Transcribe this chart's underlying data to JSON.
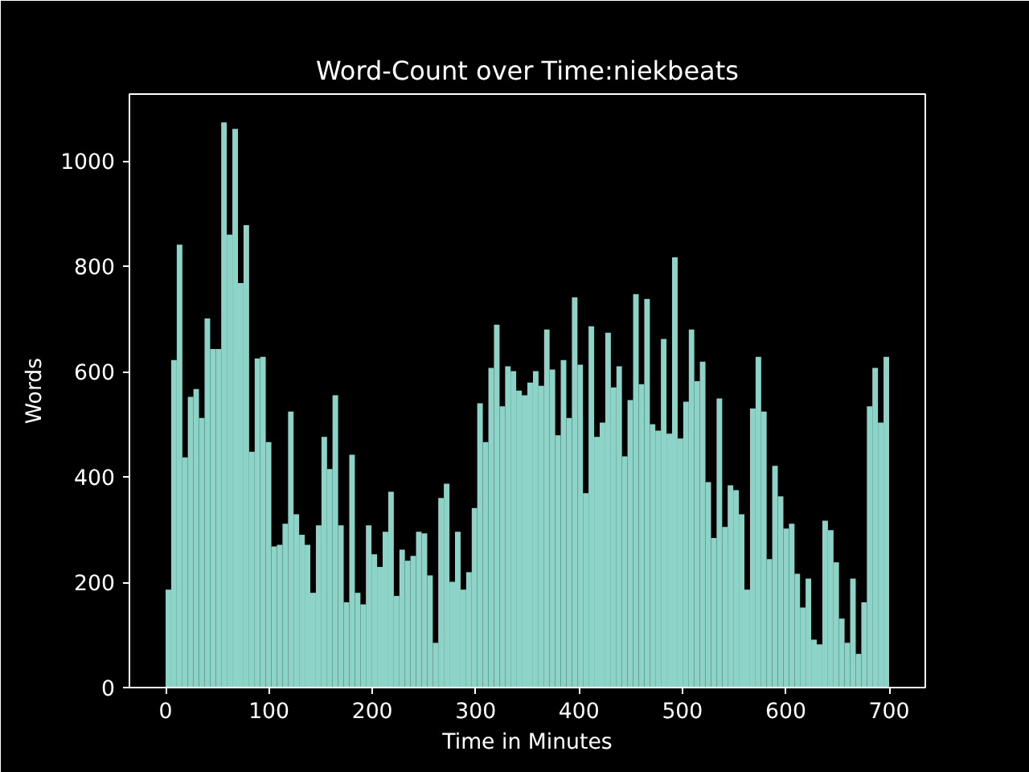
{
  "chart_data": {
    "type": "histogram",
    "title": "Word-Count over Time:niekbeats",
    "xlabel": "Time in Minutes",
    "ylabel": "Words",
    "color": "#8dd3c7",
    "bins": [
      0,
      5.4,
      10.8,
      16.2,
      21.5,
      26.9,
      32.3,
      37.7,
      43.1,
      48.5,
      53.8,
      59.2,
      64.6,
      70,
      75.4,
      80.8,
      86.2,
      91.5,
      96.9,
      102.3,
      107.7,
      113.1,
      118.5,
      123.8,
      129.2,
      134.6,
      140,
      145.4,
      150.8,
      156.2,
      161.5,
      166.9,
      172.3,
      177.7,
      183.1,
      188.5,
      193.8,
      199.2,
      204.6,
      210,
      215.4,
      220.8,
      226.2,
      231.5,
      236.9,
      242.3,
      247.7,
      253.1,
      258.5,
      263.8,
      269.2,
      274.6,
      280,
      285.4,
      290.8,
      296.2,
      301.5,
      306.9,
      312.3,
      317.7,
      323.1,
      328.5,
      333.8,
      339.2,
      344.6,
      350,
      355.4,
      360.8,
      366.2,
      371.5,
      376.9,
      382.3,
      387.7,
      393.1,
      398.5,
      403.8,
      409.2,
      414.6,
      420,
      425.4,
      430.8,
      436.2,
      441.5,
      446.9,
      452.3,
      457.7,
      463.1,
      468.5,
      473.8,
      479.2,
      484.6,
      490,
      495.4,
      500.8,
      506.2,
      511.5,
      516.9,
      522.3,
      527.7,
      533.1,
      538.5,
      543.8,
      549.2,
      554.6,
      560,
      565.4,
      570.8,
      576.2,
      581.5,
      586.9,
      592.3,
      597.7,
      603.1,
      608.5,
      613.8,
      619.2,
      624.6,
      630,
      635.4,
      640.8,
      646.2,
      651.5,
      656.9,
      662.3,
      667.7,
      673.1,
      678.5,
      683.8,
      689.2,
      694.6,
      700
    ],
    "values": [
      186,
      622,
      841,
      437,
      552,
      567,
      512,
      701,
      643,
      643,
      1073,
      860,
      1061,
      768,
      878,
      448,
      625,
      628,
      466,
      268,
      271,
      311,
      524,
      329,
      290,
      271,
      180,
      308,
      476,
      415,
      555,
      308,
      162,
      442,
      180,
      158,
      308,
      253,
      229,
      296,
      372,
      174,
      262,
      241,
      250,
      296,
      293,
      213,
      85,
      360,
      387,
      201,
      296,
      186,
      219,
      341,
      540,
      466,
      607,
      689,
      534,
      610,
      601,
      564,
      555,
      579,
      601,
      573,
      680,
      604,
      479,
      622,
      512,
      741,
      613,
      369,
      686,
      476,
      503,
      674,
      570,
      610,
      439,
      546,
      747,
      576,
      738,
      500,
      488,
      662,
      482,
      817,
      473,
      543,
      680,
      582,
      619,
      390,
      284,
      549,
      305,
      384,
      375,
      329,
      186,
      530,
      628,
      524,
      244,
      421,
      363,
      302,
      311,
      216,
      152,
      207,
      91,
      82,
      317,
      299,
      238,
      131,
      85,
      207,
      64,
      162,
      534,
      607,
      503,
      628
    ],
    "xlim": [
      -35,
      735
    ],
    "ylim": [
      0,
      1127
    ],
    "xticks": [
      0,
      100,
      200,
      300,
      400,
      500,
      600,
      700
    ],
    "yticks": [
      0,
      200,
      400,
      600,
      800,
      1000
    ],
    "grid": false
  }
}
